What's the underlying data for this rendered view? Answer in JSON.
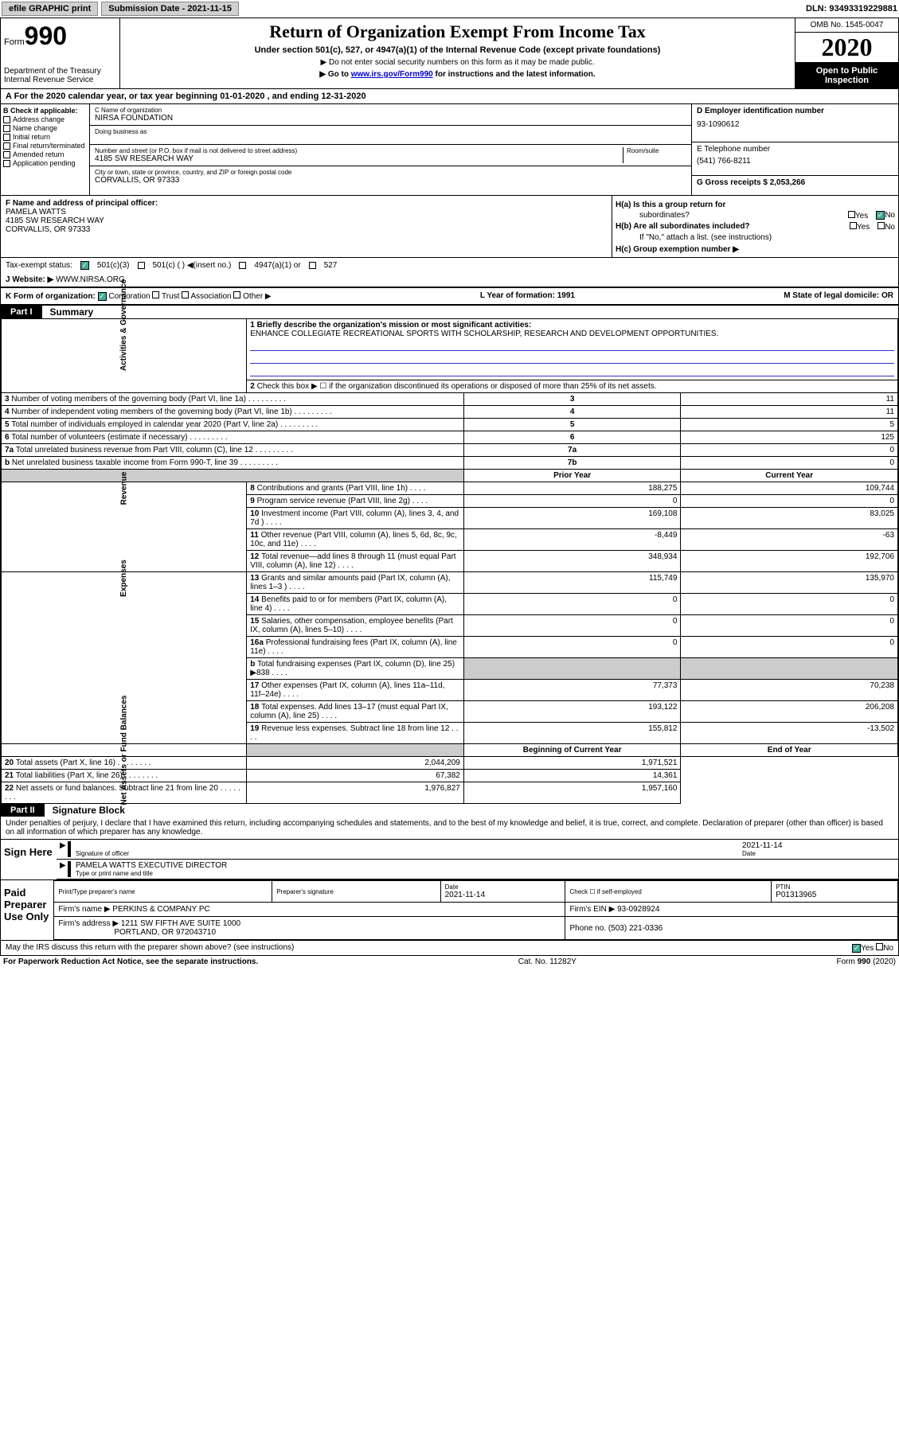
{
  "top_bar": {
    "efile": "efile GRAPHIC print",
    "submission_label": "Submission Date - 2021-11-15",
    "dln": "DLN: 93493319229881"
  },
  "header": {
    "form_word": "Form",
    "form_num": "990",
    "dept": "Department of the Treasury",
    "irs": "Internal Revenue Service",
    "title": "Return of Organization Exempt From Income Tax",
    "subtitle": "Under section 501(c), 527, or 4947(a)(1) of the Internal Revenue Code (except private foundations)",
    "note1": "Do not enter social security numbers on this form as it may be made public.",
    "note2_pre": "Go to ",
    "note2_link": "www.irs.gov/Form990",
    "note2_post": " for instructions and the latest information.",
    "omb": "OMB No. 1545-0047",
    "year": "2020",
    "inspection1": "Open to Public",
    "inspection2": "Inspection"
  },
  "row_a": "A For the 2020 calendar year, or tax year beginning 01-01-2020   , and ending 12-31-2020",
  "section_b": {
    "label": "B Check if applicable:",
    "opts": [
      "Address change",
      "Name change",
      "Initial return",
      "Final return/terminated",
      "Amended return",
      "Application pending"
    ]
  },
  "section_c": {
    "name_label": "C Name of organization",
    "name": "NIRSA FOUNDATION",
    "dba_label": "Doing business as",
    "street_label": "Number and street (or P.O. box if mail is not delivered to street address)",
    "room_label": "Room/suite",
    "street": "4185 SW RESEARCH WAY",
    "city_label": "City or town, state or province, country, and ZIP or foreign postal code",
    "city": "CORVALLIS, OR  97333"
  },
  "section_d": {
    "ein_label": "D Employer identification number",
    "ein": "93-1090612",
    "phone_label": "E Telephone number",
    "phone": "(541) 766-8211",
    "gross_label": "G Gross receipts $ 2,053,266"
  },
  "section_f": {
    "label": "F  Name and address of principal officer:",
    "name": "PAMELA WATTS",
    "addr1": "4185 SW RESEARCH WAY",
    "addr2": "CORVALLIS, OR  97333"
  },
  "section_h": {
    "ha": "H(a)  Is this a group return for",
    "ha2": "subordinates?",
    "hb": "H(b)  Are all subordinates included?",
    "hb_note": "If \"No,\" attach a list. (see instructions)",
    "hc": "H(c)  Group exemption number ▶",
    "yes": "Yes",
    "no": "No"
  },
  "row_i": {
    "label": "Tax-exempt status:",
    "o1": "501(c)(3)",
    "o2": "501(c) (  ) ◀(insert no.)",
    "o3": "4947(a)(1) or",
    "o4": "527"
  },
  "row_j": {
    "label": "J   Website: ▶",
    "val": "WWW.NIRSA.ORG"
  },
  "row_k": {
    "label": "K Form of organization:",
    "o1": "Corporation",
    "o2": "Trust",
    "o3": "Association",
    "o4": "Other ▶",
    "l": "L Year of formation: 1991",
    "m": "M State of legal domicile: OR"
  },
  "part1": {
    "tab": "Part I",
    "title": "Summary"
  },
  "summary": {
    "line1_label": "1  Briefly describe the organization's mission or most significant activities:",
    "mission": "ENHANCE COLLEGIATE RECREATIONAL SPORTS WITH SCHOLARSHIP, RESEARCH AND DEVELOPMENT OPPORTUNITIES.",
    "line2": "Check this box ▶ ☐  if the organization discontinued its operations or disposed of more than 25% of its net assets.",
    "rows_gov": [
      {
        "n": "3",
        "d": "Number of voting members of the governing body (Part VI, line 1a)",
        "c": "3",
        "v": "11"
      },
      {
        "n": "4",
        "d": "Number of independent voting members of the governing body (Part VI, line 1b)",
        "c": "4",
        "v": "11"
      },
      {
        "n": "5",
        "d": "Total number of individuals employed in calendar year 2020 (Part V, line 2a)",
        "c": "5",
        "v": "5"
      },
      {
        "n": "6",
        "d": "Total number of volunteers (estimate if necessary)",
        "c": "6",
        "v": "125"
      },
      {
        "n": "7a",
        "d": "Total unrelated business revenue from Part VIII, column (C), line 12",
        "c": "7a",
        "v": "0"
      },
      {
        "n": "b",
        "d": "Net unrelated business taxable income from Form 990-T, line 39",
        "c": "7b",
        "v": "0"
      }
    ],
    "col_prior": "Prior Year",
    "col_current": "Current Year",
    "rows_rev": [
      {
        "n": "8",
        "d": "Contributions and grants (Part VIII, line 1h)",
        "p": "188,275",
        "c": "109,744"
      },
      {
        "n": "9",
        "d": "Program service revenue (Part VIII, line 2g)",
        "p": "0",
        "c": "0"
      },
      {
        "n": "10",
        "d": "Investment income (Part VIII, column (A), lines 3, 4, and 7d )",
        "p": "169,108",
        "c": "83,025"
      },
      {
        "n": "11",
        "d": "Other revenue (Part VIII, column (A), lines 5, 6d, 8c, 9c, 10c, and 11e)",
        "p": "-8,449",
        "c": "-63"
      },
      {
        "n": "12",
        "d": "Total revenue—add lines 8 through 11 (must equal Part VIII, column (A), line 12)",
        "p": "348,934",
        "c": "192,706"
      }
    ],
    "rows_exp": [
      {
        "n": "13",
        "d": "Grants and similar amounts paid (Part IX, column (A), lines 1–3 )",
        "p": "115,749",
        "c": "135,970"
      },
      {
        "n": "14",
        "d": "Benefits paid to or for members (Part IX, column (A), line 4)",
        "p": "0",
        "c": "0"
      },
      {
        "n": "15",
        "d": "Salaries, other compensation, employee benefits (Part IX, column (A), lines 5–10)",
        "p": "0",
        "c": "0"
      },
      {
        "n": "16a",
        "d": "Professional fundraising fees (Part IX, column (A), line 11e)",
        "p": "0",
        "c": "0"
      },
      {
        "n": "b",
        "d": "Total fundraising expenses (Part IX, column (D), line 25) ▶838",
        "p": "",
        "c": "",
        "shaded": true
      },
      {
        "n": "17",
        "d": "Other expenses (Part IX, column (A), lines 11a–11d, 11f–24e)",
        "p": "77,373",
        "c": "70,238"
      },
      {
        "n": "18",
        "d": "Total expenses. Add lines 13–17 (must equal Part IX, column (A), line 25)",
        "p": "193,122",
        "c": "206,208"
      },
      {
        "n": "19",
        "d": "Revenue less expenses. Subtract line 18 from line 12",
        "p": "155,812",
        "c": "-13,502"
      }
    ],
    "col_begin": "Beginning of Current Year",
    "col_end": "End of Year",
    "rows_net": [
      {
        "n": "20",
        "d": "Total assets (Part X, line 16)",
        "p": "2,044,209",
        "c": "1,971,521"
      },
      {
        "n": "21",
        "d": "Total liabilities (Part X, line 26)",
        "p": "67,382",
        "c": "14,361"
      },
      {
        "n": "22",
        "d": "Net assets or fund balances. Subtract line 21 from line 20",
        "p": "1,976,827",
        "c": "1,957,160"
      }
    ],
    "side_gov": "Activities & Governance",
    "side_rev": "Revenue",
    "side_exp": "Expenses",
    "side_net": "Net Assets or Fund Balances"
  },
  "part2": {
    "tab": "Part II",
    "title": "Signature Block"
  },
  "perjury": "Under penalties of perjury, I declare that I have examined this return, including accompanying schedules and statements, and to the best of my knowledge and belief, it is true, correct, and complete. Declaration of preparer (other than officer) is based on all information of which preparer has any knowledge.",
  "sign": {
    "here": "Sign Here",
    "sig_label": "Signature of officer",
    "date": "2021-11-14",
    "date_label": "Date",
    "name": "PAMELA WATTS  EXECUTIVE DIRECTOR",
    "name_label": "Type or print name and title"
  },
  "paid": {
    "label": "Paid Preparer Use Only",
    "h1": "Print/Type preparer's name",
    "h2": "Preparer's signature",
    "h3": "Date",
    "h3v": "2021-11-14",
    "h4": "Check ☐ if self-employed",
    "h5": "PTIN",
    "h5v": "P01313965",
    "firm_name_label": "Firm's name     ▶",
    "firm_name": "PERKINS & COMPANY PC",
    "firm_ein": "Firm's EIN ▶ 93-0928924",
    "firm_addr_label": "Firm's address ▶",
    "firm_addr": "1211 SW FIFTH AVE SUITE 1000",
    "firm_addr2": "PORTLAND, OR  972043710",
    "phone": "Phone no. (503) 221-0336"
  },
  "discuss": "May the IRS discuss this return with the preparer shown above? (see instructions)",
  "footer": {
    "left": "For Paperwork Reduction Act Notice, see the separate instructions.",
    "mid": "Cat. No. 11282Y",
    "right": "Form 990 (2020)"
  }
}
